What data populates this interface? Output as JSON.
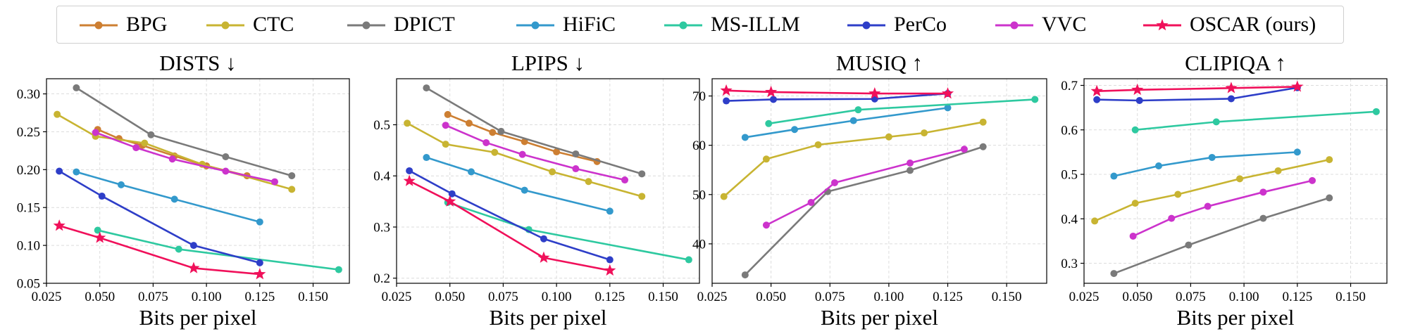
{
  "legend": {
    "entries": [
      {
        "name": "BPG",
        "color": "#cd7f32",
        "marker": "circle"
      },
      {
        "name": "CTC",
        "color": "#c8b432",
        "marker": "circle"
      },
      {
        "name": "DPICT",
        "color": "#7a7a7a",
        "marker": "circle"
      },
      {
        "name": "HiFiC",
        "color": "#3399cc",
        "marker": "circle"
      },
      {
        "name": "MS-ILLM",
        "color": "#2ec9a0",
        "marker": "circle"
      },
      {
        "name": "PerCo",
        "color": "#2e3ec8",
        "marker": "circle"
      },
      {
        "name": "VVC",
        "color": "#cc33cc",
        "marker": "circle"
      },
      {
        "name": "OSCAR (ours)",
        "color": "#f0105a",
        "marker": "star"
      }
    ]
  },
  "chart_data": [
    {
      "type": "line",
      "title": "DISTS ↓",
      "xlabel": "Bits per pixel",
      "ylabel": "",
      "xlim": [
        0.025,
        0.167
      ],
      "ylim": [
        0.05,
        0.32
      ],
      "xticks": [
        "0.025",
        "0.050",
        "0.075",
        "0.100",
        "0.125",
        "0.150"
      ],
      "yticks": [
        "0.05",
        "0.10",
        "0.15",
        "0.20",
        "0.25",
        "0.30"
      ],
      "grid": true,
      "series": [
        {
          "name": "BPG",
          "x": [
            0.049,
            0.059,
            0.07,
            0.085,
            0.1,
            0.119
          ],
          "y": [
            0.253,
            0.241,
            0.232,
            0.218,
            0.205,
            0.192
          ]
        },
        {
          "name": "CTC",
          "x": [
            0.03,
            0.048,
            0.071,
            0.098,
            0.14
          ],
          "y": [
            0.273,
            0.244,
            0.235,
            0.207,
            0.174
          ]
        },
        {
          "name": "DPICT",
          "x": [
            0.039,
            0.074,
            0.109,
            0.14
          ],
          "y": [
            0.308,
            0.246,
            0.217,
            0.192
          ]
        },
        {
          "name": "HiFiC",
          "x": [
            0.039,
            0.06,
            0.085,
            0.125
          ],
          "y": [
            0.197,
            0.18,
            0.161,
            0.131
          ]
        },
        {
          "name": "MS-ILLM",
          "x": [
            0.049,
            0.087,
            0.162
          ],
          "y": [
            0.12,
            0.095,
            0.068
          ]
        },
        {
          "name": "PerCo",
          "x": [
            0.031,
            0.051,
            0.094,
            0.125
          ],
          "y": [
            0.198,
            0.165,
            0.1,
            0.077
          ]
        },
        {
          "name": "VVC",
          "x": [
            0.048,
            0.067,
            0.084,
            0.109,
            0.132
          ],
          "y": [
            0.249,
            0.229,
            0.214,
            0.198,
            0.184
          ]
        },
        {
          "name": "OSCAR (ours)",
          "x": [
            0.031,
            0.05,
            0.094,
            0.125
          ],
          "y": [
            0.126,
            0.11,
            0.07,
            0.062
          ]
        }
      ]
    },
    {
      "type": "line",
      "title": "LPIPS ↓",
      "xlabel": "Bits per pixel",
      "ylabel": "",
      "xlim": [
        0.025,
        0.167
      ],
      "ylim": [
        0.19,
        0.59
      ],
      "xticks": [
        "0.025",
        "0.050",
        "0.075",
        "0.100",
        "0.125",
        "0.150"
      ],
      "yticks": [
        "0.2",
        "0.3",
        "0.4",
        "0.5"
      ],
      "grid": true,
      "series": [
        {
          "name": "BPG",
          "x": [
            0.049,
            0.059,
            0.07,
            0.085,
            0.1,
            0.119
          ],
          "y": [
            0.52,
            0.503,
            0.485,
            0.467,
            0.447,
            0.428
          ]
        },
        {
          "name": "CTC",
          "x": [
            0.03,
            0.048,
            0.071,
            0.098,
            0.115,
            0.14
          ],
          "y": [
            0.503,
            0.462,
            0.446,
            0.408,
            0.389,
            0.36
          ]
        },
        {
          "name": "DPICT",
          "x": [
            0.039,
            0.074,
            0.109,
            0.14
          ],
          "y": [
            0.572,
            0.487,
            0.443,
            0.404
          ]
        },
        {
          "name": "HiFiC",
          "x": [
            0.039,
            0.06,
            0.085,
            0.125
          ],
          "y": [
            0.436,
            0.408,
            0.372,
            0.331
          ]
        },
        {
          "name": "MS-ILLM",
          "x": [
            0.049,
            0.087,
            0.162
          ],
          "y": [
            0.348,
            0.295,
            0.236
          ]
        },
        {
          "name": "PerCo",
          "x": [
            0.031,
            0.051,
            0.094,
            0.125
          ],
          "y": [
            0.41,
            0.365,
            0.277,
            0.236
          ]
        },
        {
          "name": "VVC",
          "x": [
            0.048,
            0.067,
            0.084,
            0.109,
            0.132
          ],
          "y": [
            0.499,
            0.465,
            0.442,
            0.414,
            0.392
          ]
        },
        {
          "name": "OSCAR (ours)",
          "x": [
            0.031,
            0.05,
            0.094,
            0.125
          ],
          "y": [
            0.39,
            0.35,
            0.24,
            0.215
          ]
        }
      ]
    },
    {
      "type": "line",
      "title": "MUSIQ ↑",
      "xlabel": "Bits per pixel",
      "ylabel": "",
      "xlim": [
        0.025,
        0.167
      ],
      "ylim": [
        32,
        73.5
      ],
      "xticks": [
        "0.025",
        "0.050",
        "0.075",
        "0.100",
        "0.125",
        "0.150"
      ],
      "yticks": [
        "40",
        "50",
        "60",
        "70"
      ],
      "grid": true,
      "series": [
        {
          "name": "CTC",
          "x": [
            0.03,
            0.048,
            0.07,
            0.1,
            0.115,
            0.14
          ],
          "y": [
            49.6,
            57.2,
            60.1,
            61.7,
            62.5,
            64.7
          ]
        },
        {
          "name": "DPICT",
          "x": [
            0.039,
            0.074,
            0.109,
            0.14
          ],
          "y": [
            33.7,
            50.6,
            54.9,
            59.7
          ]
        },
        {
          "name": "HiFiC",
          "x": [
            0.039,
            0.06,
            0.085,
            0.125
          ],
          "y": [
            61.6,
            63.2,
            65.0,
            67.6
          ]
        },
        {
          "name": "MS-ILLM",
          "x": [
            0.049,
            0.087,
            0.162
          ],
          "y": [
            64.4,
            67.2,
            69.3
          ]
        },
        {
          "name": "PerCo",
          "x": [
            0.031,
            0.051,
            0.094,
            0.125
          ],
          "y": [
            69.0,
            69.3,
            69.4,
            70.5
          ]
        },
        {
          "name": "VVC",
          "x": [
            0.048,
            0.067,
            0.077,
            0.109,
            0.132
          ],
          "y": [
            43.8,
            48.4,
            52.4,
            56.4,
            59.2
          ]
        },
        {
          "name": "OSCAR (ours)",
          "x": [
            0.031,
            0.05,
            0.094,
            0.125
          ],
          "y": [
            71.1,
            70.8,
            70.5,
            70.5
          ]
        }
      ]
    },
    {
      "type": "line",
      "title": "CLIPIQA ↑",
      "xlabel": "Bits per pixel",
      "ylabel": "",
      "xlim": [
        0.025,
        0.167
      ],
      "ylim": [
        0.255,
        0.715
      ],
      "xticks": [
        "0.025",
        "0.050",
        "0.075",
        "0.100",
        "0.125",
        "0.150"
      ],
      "yticks": [
        "0.3",
        "0.4",
        "0.5",
        "0.6",
        "0.7"
      ],
      "grid": true,
      "series": [
        {
          "name": "CTC",
          "x": [
            0.03,
            0.049,
            0.069,
            0.098,
            0.116,
            0.14
          ],
          "y": [
            0.395,
            0.435,
            0.455,
            0.49,
            0.508,
            0.533
          ]
        },
        {
          "name": "DPICT",
          "x": [
            0.039,
            0.074,
            0.109,
            0.14
          ],
          "y": [
            0.277,
            0.341,
            0.401,
            0.447
          ]
        },
        {
          "name": "HiFiC",
          "x": [
            0.039,
            0.06,
            0.085,
            0.125
          ],
          "y": [
            0.496,
            0.519,
            0.538,
            0.55
          ]
        },
        {
          "name": "MS-ILLM",
          "x": [
            0.049,
            0.087,
            0.162
          ],
          "y": [
            0.6,
            0.618,
            0.641
          ]
        },
        {
          "name": "PerCo",
          "x": [
            0.031,
            0.051,
            0.094,
            0.125
          ],
          "y": [
            0.668,
            0.666,
            0.67,
            0.695
          ]
        },
        {
          "name": "VVC",
          "x": [
            0.048,
            0.066,
            0.083,
            0.109,
            0.132
          ],
          "y": [
            0.361,
            0.401,
            0.428,
            0.46,
            0.486
          ]
        },
        {
          "name": "OSCAR (ours)",
          "x": [
            0.031,
            0.05,
            0.094,
            0.125
          ],
          "y": [
            0.687,
            0.69,
            0.694,
            0.697
          ]
        }
      ]
    }
  ]
}
